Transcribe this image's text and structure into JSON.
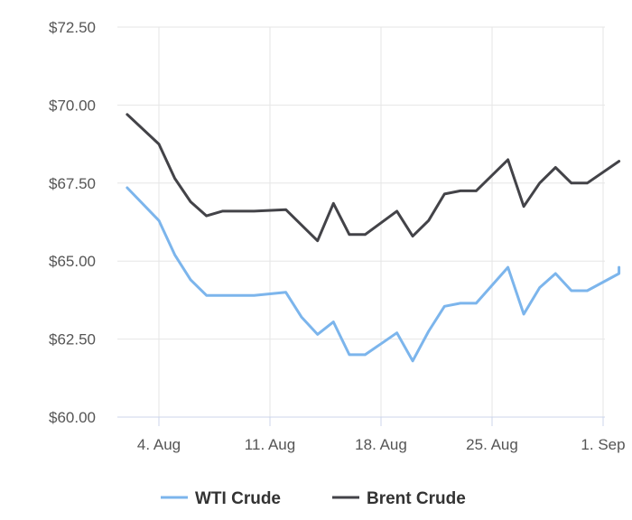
{
  "chart_data": {
    "type": "line",
    "title": "",
    "xlabel": "",
    "ylabel": "",
    "ylim": [
      60,
      72.5
    ],
    "yticks": [
      "$72.50",
      "$70.00",
      "$67.50",
      "$65.00",
      "$62.50",
      "$60.00"
    ],
    "ytick_values": [
      72.5,
      70,
      67.5,
      65,
      62.5,
      60
    ],
    "xticks": [
      {
        "label": "4. Aug",
        "x": "2025-08-04"
      },
      {
        "label": "11. Aug",
        "x": "2025-08-11"
      },
      {
        "label": "18. Aug",
        "x": "2025-08-18"
      },
      {
        "label": "25. Aug",
        "x": "2025-08-25"
      },
      {
        "label": "1. Sep",
        "x": "2025-09-01"
      }
    ],
    "grid": true,
    "legend_position": "bottom",
    "series": [
      {
        "name": "WTI Crude",
        "color": "#7cb5ec",
        "points": [
          [
            "2025-08-02",
            67.35
          ],
          [
            "2025-08-04",
            66.3
          ],
          [
            "2025-08-05",
            65.2
          ],
          [
            "2025-08-06",
            64.4
          ],
          [
            "2025-08-07",
            63.9
          ],
          [
            "2025-08-08",
            63.9
          ],
          [
            "2025-08-10",
            63.9
          ],
          [
            "2025-08-12",
            64.0
          ],
          [
            "2025-08-13",
            63.2
          ],
          [
            "2025-08-14",
            62.65
          ],
          [
            "2025-08-15",
            63.05
          ],
          [
            "2025-08-16",
            62.0
          ],
          [
            "2025-08-17",
            62.0
          ],
          [
            "2025-08-18",
            62.35
          ],
          [
            "2025-08-19",
            62.7
          ],
          [
            "2025-08-20",
            61.8
          ],
          [
            "2025-08-21",
            62.75
          ],
          [
            "2025-08-22",
            63.55
          ],
          [
            "2025-08-23",
            63.65
          ],
          [
            "2025-08-24",
            63.65
          ],
          [
            "2025-08-26",
            64.8
          ],
          [
            "2025-08-27",
            63.3
          ],
          [
            "2025-08-28",
            64.15
          ],
          [
            "2025-08-29",
            64.6
          ],
          [
            "2025-08-30",
            64.05
          ],
          [
            "2025-08-31",
            64.05
          ],
          [
            "2025-09-02",
            64.6
          ],
          [
            "2025-09-02",
            64.8
          ]
        ]
      },
      {
        "name": "Brent Crude",
        "color": "#434348",
        "points": [
          [
            "2025-08-02",
            69.7
          ],
          [
            "2025-08-04",
            68.75
          ],
          [
            "2025-08-05",
            67.65
          ],
          [
            "2025-08-06",
            66.9
          ],
          [
            "2025-08-07",
            66.45
          ],
          [
            "2025-08-08",
            66.6
          ],
          [
            "2025-08-10",
            66.6
          ],
          [
            "2025-08-12",
            66.65
          ],
          [
            "2025-08-14",
            65.65
          ],
          [
            "2025-08-15",
            66.85
          ],
          [
            "2025-08-16",
            65.85
          ],
          [
            "2025-08-17",
            65.85
          ],
          [
            "2025-08-19",
            66.6
          ],
          [
            "2025-08-20",
            65.8
          ],
          [
            "2025-08-21",
            66.3
          ],
          [
            "2025-08-22",
            67.15
          ],
          [
            "2025-08-23",
            67.25
          ],
          [
            "2025-08-24",
            67.25
          ],
          [
            "2025-08-26",
            68.25
          ],
          [
            "2025-08-27",
            66.75
          ],
          [
            "2025-08-28",
            67.5
          ],
          [
            "2025-08-29",
            68.0
          ],
          [
            "2025-08-30",
            67.5
          ],
          [
            "2025-08-31",
            67.5
          ],
          [
            "2025-09-02",
            68.2
          ]
        ]
      }
    ]
  }
}
